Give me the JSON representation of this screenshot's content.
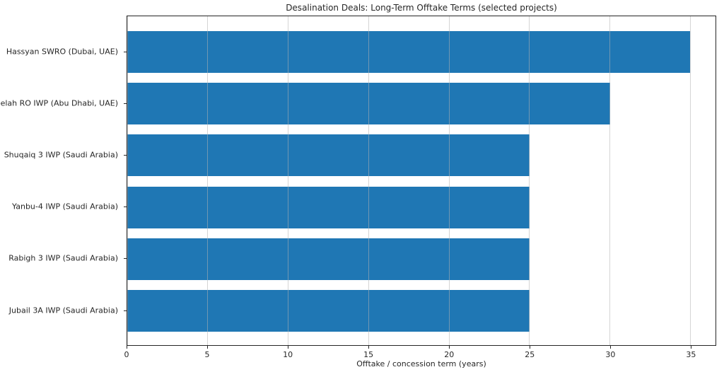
{
  "chart_data": {
    "type": "bar",
    "orientation": "horizontal",
    "title": "Desalination Deals: Long-Term Offtake Terms (selected projects)",
    "xlabel": "Offtake / concession term (years)",
    "ylabel": "",
    "categories": [
      "Hassyan SWRO (Dubai, UAE)",
      "Taweelah RO IWP (Abu Dhabi, UAE)",
      "Shuqaiq 3 IWP (Saudi Arabia)",
      "Yanbu-4 IWP (Saudi Arabia)",
      "Rabigh 3 IWP (Saudi Arabia)",
      "Jubail 3A IWP (Saudi Arabia)"
    ],
    "values": [
      35,
      30,
      25,
      25,
      25,
      25
    ],
    "x_ticks": [
      0,
      5,
      10,
      15,
      20,
      25,
      30,
      35
    ],
    "xlim": [
      0,
      36.56
    ],
    "grid": true,
    "grid_axis": "x",
    "legend": "none",
    "bar_color": "#1f77b4"
  }
}
